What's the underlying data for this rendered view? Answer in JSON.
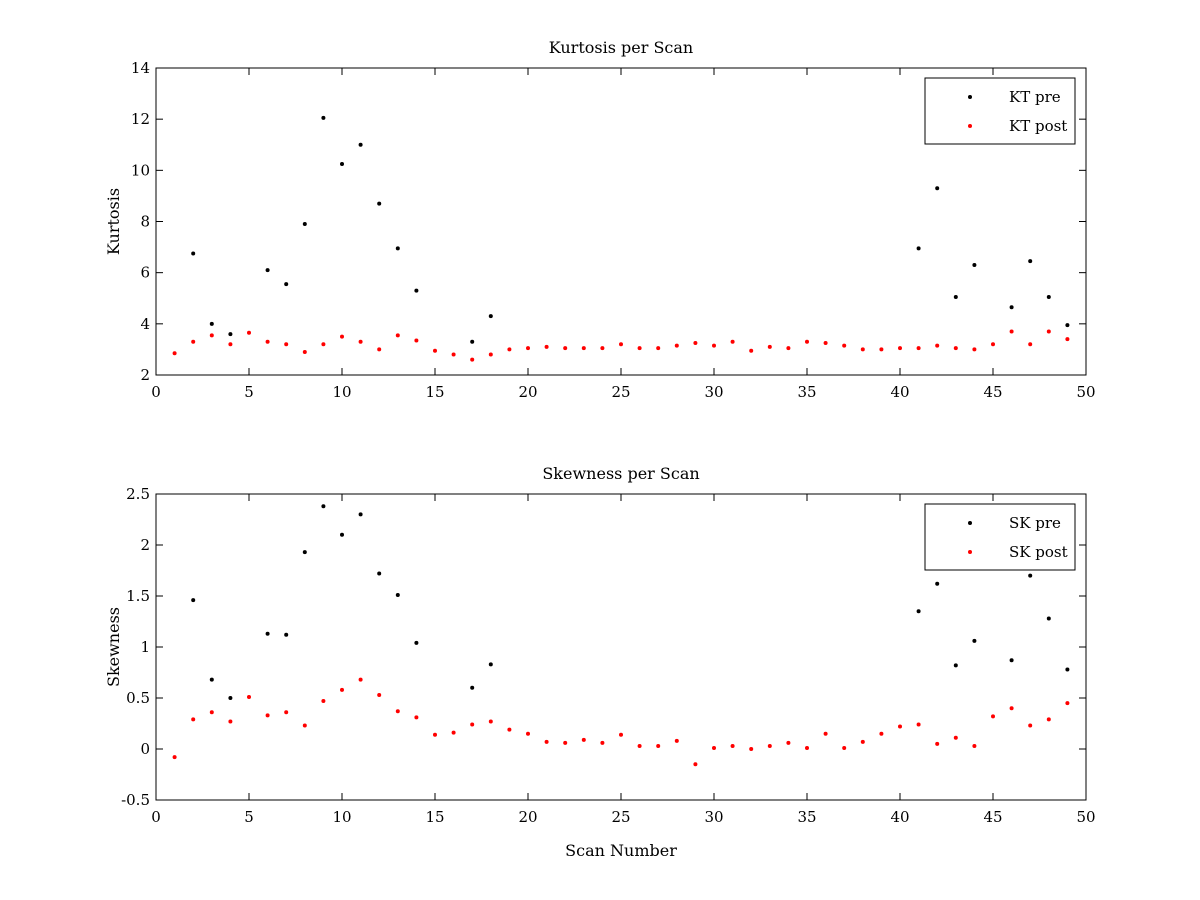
{
  "chart_data": [
    {
      "type": "scatter",
      "title": "Kurtosis per Scan",
      "xlabel": "",
      "ylabel": "Kurtosis",
      "xlim": [
        0,
        50
      ],
      "ylim": [
        2,
        14
      ],
      "xticks": [
        0,
        5,
        10,
        15,
        20,
        25,
        30,
        35,
        40,
        45,
        50
      ],
      "yticks": [
        2,
        4,
        6,
        8,
        10,
        12,
        14
      ],
      "grid": false,
      "legend_position": "top-right",
      "series": [
        {
          "name": "KT pre",
          "color": "#000000",
          "points": [
            [
              2,
              6.75
            ],
            [
              3,
              4.0
            ],
            [
              4,
              3.6
            ],
            [
              6,
              6.1
            ],
            [
              7,
              5.55
            ],
            [
              8,
              7.9
            ],
            [
              9,
              12.05
            ],
            [
              10,
              10.25
            ],
            [
              11,
              11.0
            ],
            [
              12,
              8.7
            ],
            [
              13,
              6.95
            ],
            [
              14,
              5.3
            ],
            [
              17,
              3.3
            ],
            [
              18,
              4.3
            ],
            [
              41,
              6.95
            ],
            [
              42,
              9.3
            ],
            [
              43,
              5.05
            ],
            [
              44,
              6.3
            ],
            [
              46,
              4.65
            ],
            [
              47,
              6.45
            ],
            [
              48,
              5.05
            ],
            [
              49,
              3.95
            ]
          ]
        },
        {
          "name": "KT post",
          "color": "#ff0000",
          "points": [
            [
              1,
              2.85
            ],
            [
              2,
              3.3
            ],
            [
              3,
              3.55
            ],
            [
              4,
              3.2
            ],
            [
              5,
              3.65
            ],
            [
              6,
              3.3
            ],
            [
              7,
              3.2
            ],
            [
              8,
              2.9
            ],
            [
              9,
              3.2
            ],
            [
              10,
              3.5
            ],
            [
              11,
              3.3
            ],
            [
              12,
              3.0
            ],
            [
              13,
              3.55
            ],
            [
              14,
              3.35
            ],
            [
              15,
              2.95
            ],
            [
              16,
              2.8
            ],
            [
              17,
              2.6
            ],
            [
              18,
              2.8
            ],
            [
              19,
              3.0
            ],
            [
              20,
              3.05
            ],
            [
              21,
              3.1
            ],
            [
              22,
              3.05
            ],
            [
              23,
              3.05
            ],
            [
              24,
              3.05
            ],
            [
              25,
              3.2
            ],
            [
              26,
              3.05
            ],
            [
              27,
              3.05
            ],
            [
              28,
              3.15
            ],
            [
              29,
              3.25
            ],
            [
              30,
              3.15
            ],
            [
              31,
              3.3
            ],
            [
              32,
              2.95
            ],
            [
              33,
              3.1
            ],
            [
              34,
              3.05
            ],
            [
              35,
              3.3
            ],
            [
              36,
              3.25
            ],
            [
              37,
              3.15
            ],
            [
              38,
              3.0
            ],
            [
              39,
              3.0
            ],
            [
              40,
              3.05
            ],
            [
              41,
              3.05
            ],
            [
              42,
              3.15
            ],
            [
              43,
              3.05
            ],
            [
              44,
              3.0
            ],
            [
              45,
              3.2
            ],
            [
              46,
              3.7
            ],
            [
              47,
              3.2
            ],
            [
              48,
              3.7
            ],
            [
              49,
              3.4
            ]
          ]
        }
      ]
    },
    {
      "type": "scatter",
      "title": "Skewness per Scan",
      "xlabel": "Scan Number",
      "ylabel": "Skewness",
      "xlim": [
        0,
        50
      ],
      "ylim": [
        -0.5,
        2.5
      ],
      "xticks": [
        0,
        5,
        10,
        15,
        20,
        25,
        30,
        35,
        40,
        45,
        50
      ],
      "yticks": [
        -0.5,
        0,
        0.5,
        1,
        1.5,
        2,
        2.5
      ],
      "grid": false,
      "legend_position": "top-right",
      "series": [
        {
          "name": "SK pre",
          "color": "#000000",
          "points": [
            [
              2,
              1.46
            ],
            [
              3,
              0.68
            ],
            [
              4,
              0.5
            ],
            [
              6,
              1.13
            ],
            [
              7,
              1.12
            ],
            [
              8,
              1.93
            ],
            [
              9,
              2.38
            ],
            [
              10,
              2.1
            ],
            [
              11,
              2.3
            ],
            [
              12,
              1.72
            ],
            [
              13,
              1.51
            ],
            [
              14,
              1.04
            ],
            [
              17,
              0.6
            ],
            [
              18,
              0.83
            ],
            [
              41,
              1.35
            ],
            [
              42,
              1.62
            ],
            [
              43,
              0.82
            ],
            [
              44,
              1.06
            ],
            [
              46,
              0.87
            ],
            [
              47,
              1.7
            ],
            [
              48,
              1.28
            ],
            [
              49,
              0.78
            ]
          ]
        },
        {
          "name": "SK post",
          "color": "#ff0000",
          "points": [
            [
              1,
              -0.08
            ],
            [
              2,
              0.29
            ],
            [
              3,
              0.36
            ],
            [
              4,
              0.27
            ],
            [
              5,
              0.51
            ],
            [
              6,
              0.33
            ],
            [
              7,
              0.36
            ],
            [
              8,
              0.23
            ],
            [
              9,
              0.47
            ],
            [
              10,
              0.58
            ],
            [
              11,
              0.68
            ],
            [
              12,
              0.53
            ],
            [
              13,
              0.37
            ],
            [
              14,
              0.31
            ],
            [
              15,
              0.14
            ],
            [
              16,
              0.16
            ],
            [
              17,
              0.24
            ],
            [
              18,
              0.27
            ],
            [
              19,
              0.19
            ],
            [
              20,
              0.15
            ],
            [
              21,
              0.07
            ],
            [
              22,
              0.06
            ],
            [
              23,
              0.09
            ],
            [
              24,
              0.06
            ],
            [
              25,
              0.14
            ],
            [
              26,
              0.03
            ],
            [
              27,
              0.03
            ],
            [
              28,
              0.08
            ],
            [
              29,
              -0.15
            ],
            [
              30,
              0.01
            ],
            [
              31,
              0.03
            ],
            [
              32,
              0.0
            ],
            [
              33,
              0.03
            ],
            [
              34,
              0.06
            ],
            [
              35,
              0.01
            ],
            [
              36,
              0.15
            ],
            [
              37,
              0.01
            ],
            [
              38,
              0.07
            ],
            [
              39,
              0.15
            ],
            [
              40,
              0.22
            ],
            [
              41,
              0.24
            ],
            [
              42,
              0.05
            ],
            [
              43,
              0.11
            ],
            [
              44,
              0.03
            ],
            [
              45,
              0.32
            ],
            [
              46,
              0.4
            ],
            [
              47,
              0.23
            ],
            [
              48,
              0.29
            ],
            [
              49,
              0.45
            ]
          ]
        }
      ]
    }
  ]
}
